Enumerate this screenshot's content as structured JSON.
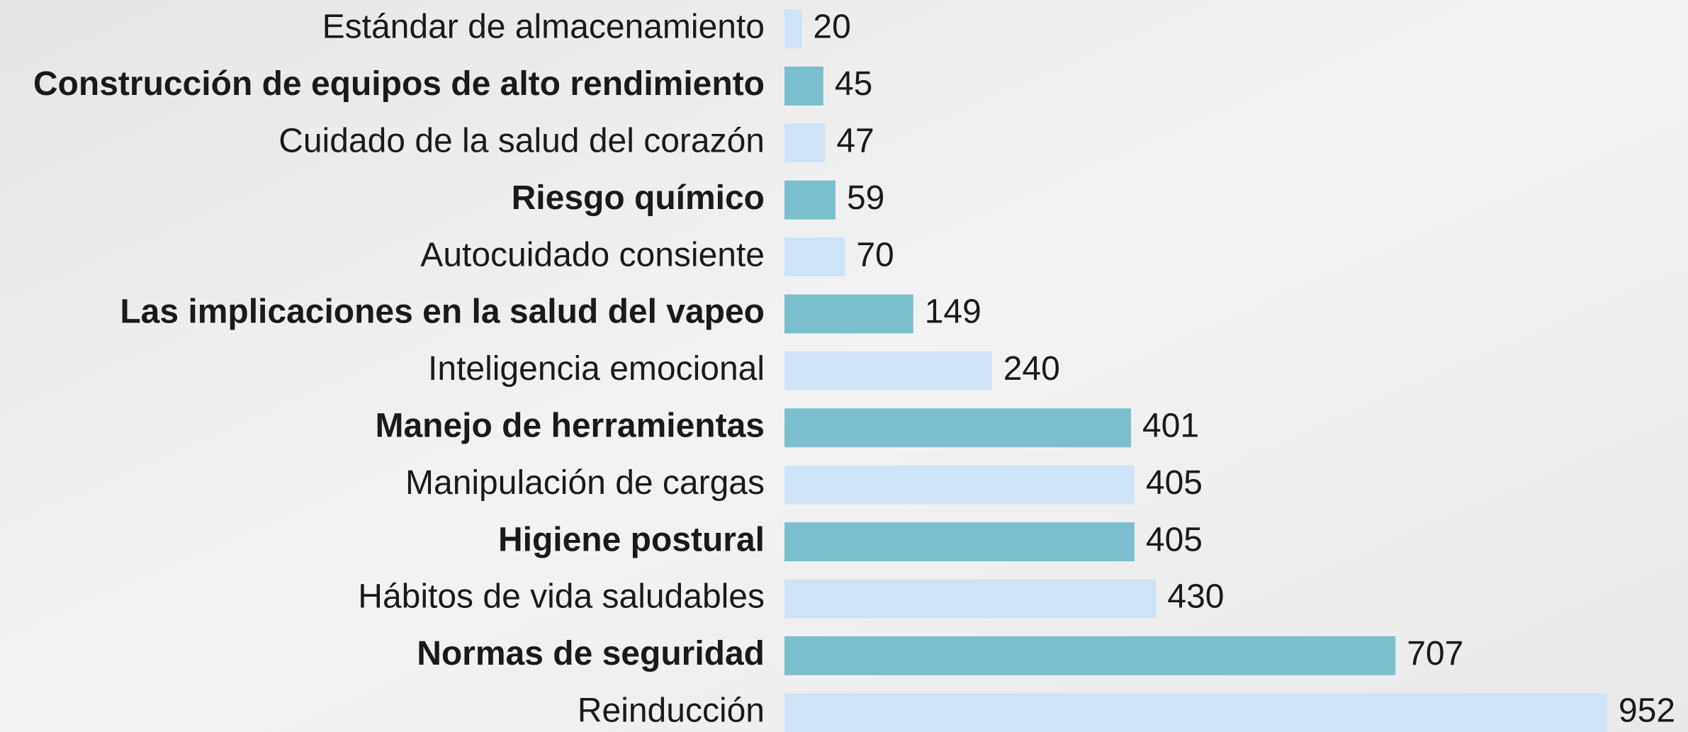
{
  "chart_data": {
    "type": "bar",
    "orientation": "horizontal",
    "categories": [
      "Estándar de almacenamiento",
      "Construcción de equipos de alto rendimiento",
      "Cuidado de la salud del corazón",
      "Riesgo químico",
      "Autocuidado consiente",
      "Las implicaciones en la salud del vapeo",
      "Inteligencia emocional",
      "Manejo de herramientas",
      "Manipulación de cargas",
      "Higiene postural",
      "Hábitos de vida saludables",
      "Normas de seguridad",
      "Reinducción"
    ],
    "values": [
      20,
      45,
      47,
      59,
      70,
      149,
      240,
      401,
      405,
      405,
      430,
      707,
      952
    ],
    "colors": [
      "#cfe3f7",
      "#7bbfcf",
      "#cfe3f7",
      "#7bbfcf",
      "#cfe3f7",
      "#7bbfcf",
      "#cfe3f7",
      "#7bbfcf",
      "#cfe3f7",
      "#7bbfcf",
      "#cfe3f7",
      "#7bbfcf",
      "#cfe3f7"
    ],
    "bold_labels": [
      false,
      true,
      false,
      true,
      false,
      true,
      false,
      true,
      false,
      true,
      false,
      true,
      false
    ]
  }
}
